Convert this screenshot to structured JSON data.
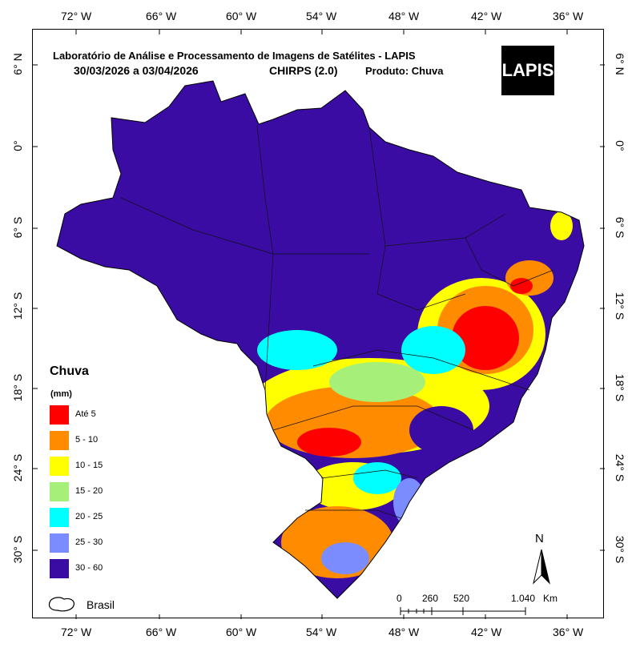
{
  "header": {
    "title": "Laboratório de Análise e Processamento de Imagens de Satélites - LAPIS",
    "date_range": "30/03/2026  a 03/04/2026",
    "dataset": "CHIRPS (2.0)",
    "product": "Produto: Chuva",
    "logo_text": "LAPIS"
  },
  "longitudes": [
    "72° W",
    "66° W",
    "60° W",
    "54° W",
    "48° W",
    "42° W",
    "36° W"
  ],
  "latitudes": [
    "6° N",
    "0°",
    "6° S",
    "12° S",
    "18° S",
    "24° S",
    "30° S"
  ],
  "legend": {
    "title": "Chuva",
    "unit": "(mm)",
    "items": [
      {
        "label": "Até 5",
        "color": "#ff0000"
      },
      {
        "label": "5 - 10",
        "color": "#ff8c00"
      },
      {
        "label": "10 - 15",
        "color": "#ffff00"
      },
      {
        "label": "15 - 20",
        "color": "#a6f07a"
      },
      {
        "label": "20 - 25",
        "color": "#00ffff"
      },
      {
        "label": "25 - 30",
        "color": "#7a8cff"
      },
      {
        "label": "30 - 60",
        "color": "#3a0ca3"
      }
    ],
    "boundary_label": "Brasil"
  },
  "scale_bar": {
    "labels": [
      "0",
      "260",
      "520",
      "1.040"
    ],
    "unit": "Km"
  },
  "north_arrow": {
    "label": "N"
  }
}
